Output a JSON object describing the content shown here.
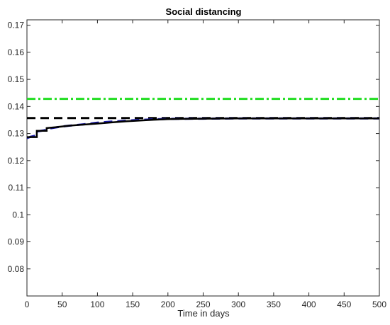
{
  "chart_data": {
    "type": "line",
    "title": "Social distancing",
    "xlabel": "Time in days",
    "ylabel": "",
    "xlim": [
      0,
      500
    ],
    "ylim": [
      0.07,
      0.172
    ],
    "x_ticks": [
      0,
      50,
      100,
      150,
      200,
      250,
      300,
      350,
      400,
      450,
      500
    ],
    "x_tick_labels": [
      "0",
      "50",
      "100",
      "150",
      "200",
      "250",
      "300",
      "350",
      "400",
      "450",
      "500"
    ],
    "y_ticks": [
      0.08,
      0.09,
      0.1,
      0.11,
      0.12,
      0.13,
      0.14,
      0.15,
      0.16,
      0.17
    ],
    "y_tick_labels": [
      "0.08",
      "0.09",
      "0.1",
      "0.11",
      "0.12",
      "0.13",
      "0.14",
      "0.15",
      "0.16",
      "0.17"
    ],
    "grid": false,
    "series": [
      {
        "color": "#22dd22",
        "style": "dash-dot",
        "x": [
          0,
          500
        ],
        "y": [
          0.1428,
          0.1428
        ]
      },
      {
        "color": "#000000",
        "style": "dashed",
        "x": [
          0,
          500
        ],
        "y": [
          0.1357,
          0.1357
        ]
      },
      {
        "color": "#1a1aaa",
        "style": "dashed",
        "x": [
          0,
          5,
          12,
          15,
          25,
          30,
          40,
          50,
          60,
          80,
          100,
          120,
          150,
          175,
          200,
          250,
          300,
          350,
          400,
          450,
          500
        ],
        "y": [
          0.1283,
          0.1288,
          0.1292,
          0.1308,
          0.1312,
          0.1318,
          0.1322,
          0.1326,
          0.1329,
          0.1334,
          0.134,
          0.1344,
          0.1349,
          0.1352,
          0.1354,
          0.1355,
          0.1356,
          0.1356,
          0.1356,
          0.1356,
          0.1356
        ]
      },
      {
        "color": "#000000",
        "style": "solid-step",
        "x": [
          0,
          14,
          14,
          28,
          28,
          40,
          50,
          60,
          75,
          90,
          105,
          120,
          140,
          160,
          180,
          200,
          220,
          250,
          300,
          350,
          400,
          450,
          500
        ],
        "y": [
          0.1287,
          0.1287,
          0.131,
          0.131,
          0.132,
          0.1323,
          0.1326,
          0.1329,
          0.1332,
          0.1335,
          0.1338,
          0.1341,
          0.1345,
          0.1348,
          0.1351,
          0.1353,
          0.1354,
          0.1355,
          0.1356,
          0.1356,
          0.1356,
          0.1356,
          0.1356
        ]
      }
    ]
  }
}
